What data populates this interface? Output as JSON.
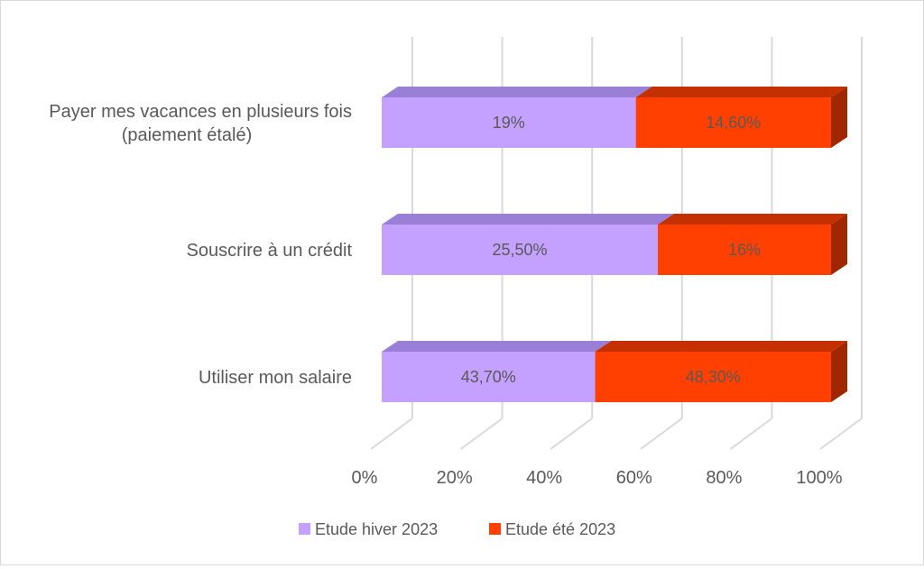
{
  "chart_data": {
    "type": "bar",
    "orientation": "horizontal",
    "stacked": "percent",
    "style": "3d",
    "categories": [
      [
        "Payer mes vacances en plusieurs fois",
        "(paiement étalé)"
      ],
      [
        "Souscrire à un crédit"
      ],
      [
        "Utiliser mon salaire"
      ]
    ],
    "series": [
      {
        "name": "Etude hiver 2023",
        "color": "#c4a0ff",
        "top_color": "#9a7fd6",
        "values": [
          19,
          25.5,
          43.7
        ],
        "labels": [
          "19%",
          "25,50%",
          "43,70%"
        ]
      },
      {
        "name": "Etude été 2023",
        "color": "#ff4000",
        "top_color": "#c43000",
        "side_color": "#a02800",
        "values": [
          14.6,
          16,
          48.3
        ],
        "labels": [
          "14,60%",
          "16%",
          "48,30%"
        ]
      }
    ],
    "x_ticks": [
      "0%",
      "20%",
      "40%",
      "60%",
      "80%",
      "100%"
    ],
    "xlim": [
      0,
      100
    ],
    "grid": true,
    "legend": "bottom"
  }
}
